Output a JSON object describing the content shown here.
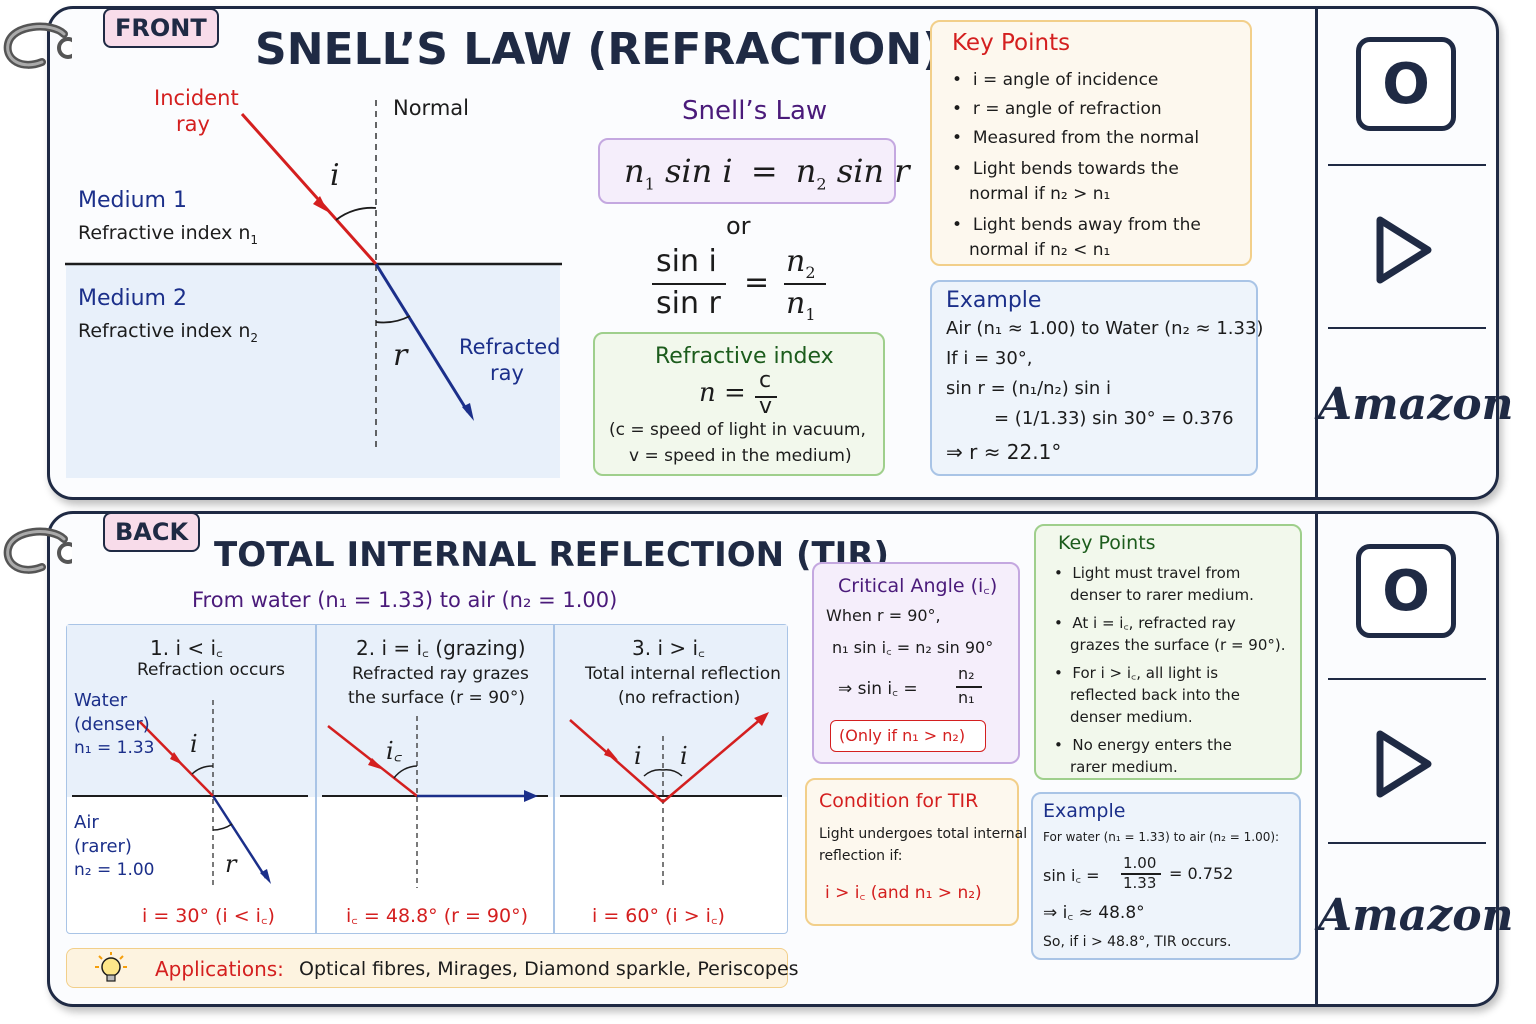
{
  "front": {
    "tag": "FRONT",
    "title": "SNELL’S LAW (REFRACTION)",
    "diagram": {
      "incident": "Incident",
      "incident2": "ray",
      "normal": "Normal",
      "i": "i",
      "r": "r",
      "medium1": "Medium 1",
      "ri1": "Refractive index n",
      "sub1": "1",
      "medium2": "Medium 2",
      "ri2": "Refractive index n",
      "sub2": "2",
      "refracted": "Refracted",
      "refracted2": "ray"
    },
    "snell": {
      "heading": "Snell’s Law",
      "eq_left": "n",
      "eq_left_sub": "1",
      "eq_left_fn": "sin i",
      "eq_mid": "=",
      "eq_right": "n",
      "eq_right_sub": "2",
      "eq_right_fn": "sin r",
      "or": "or",
      "frac_num1": "sin i",
      "frac_den1": "sin r",
      "frac_eq": "=",
      "frac_num2": "n",
      "frac_num2_sub": "2",
      "frac_den2": "n",
      "frac_den2_sub": "1"
    },
    "refractive_index": {
      "heading": "Refractive index",
      "eq": "n =",
      "num": "c",
      "den": "v",
      "note1": "(c = speed of light in vacuum,",
      "note2": "v = speed in the medium)"
    },
    "key_points": {
      "heading": "Key Points",
      "items": [
        "i = angle of incidence",
        "r = angle of refraction",
        "Measured from the normal",
        "Light bends towards the",
        "normal if n₂ > n₁",
        "Light bends away from the",
        "normal if n₂ < n₁"
      ]
    },
    "example": {
      "heading": "Example",
      "line1": "Air (n₁ ≈ 1.00) to Water (n₂ ≈ 1.33)",
      "line2": "If i = 30°,",
      "line3": "sin r = (n₁/n₂) sin i",
      "line4": "= (1/1.33) sin 30° = 0.376",
      "line5": "⇒ r ≈ 22.1°"
    }
  },
  "back": {
    "tag": "BACK",
    "title": "TOTAL INTERNAL REFLECTION (TIR)",
    "subtitle": "From water (n₁ = 1.33) to air (n₂ = 1.00)",
    "panels": [
      {
        "heading": "1. i < i꜀",
        "sub1": "Refraction occurs",
        "sub2": "",
        "caption": "i = 30°   (i < i꜀)"
      },
      {
        "heading": "2. i = i꜀ (grazing)",
        "sub1": "Refracted ray grazes",
        "sub2": "the surface (r = 90°)",
        "caption": "i꜀ = 48.8°   (r = 90°)"
      },
      {
        "heading": "3. i > i꜀",
        "sub1": "Total internal reflection",
        "sub2": "(no refraction)",
        "caption": "i = 60°   (i > i꜀)"
      }
    ],
    "labels": {
      "water1": "Water",
      "water2": "(denser)",
      "water3": "n₁ = 1.33",
      "air1": "Air",
      "air2": "(rarer)",
      "air3": "n₂ = 1.00",
      "i": "i",
      "r": "r",
      "ic": "i꜀"
    },
    "applications": {
      "label": "Applications:",
      "text": "Optical fibres, Mirages, Diamond sparkle, Periscopes"
    },
    "critical": {
      "heading": "Critical Angle (i꜀)",
      "line1": "When r = 90°,",
      "line2": "n₁ sin i꜀ = n₂ sin 90°",
      "line3a": "⇒  sin i꜀ =",
      "num": "n₂",
      "den": "n₁",
      "only": "(Only if n₁ > n₂)"
    },
    "condition": {
      "heading": "Condition for TIR",
      "line1": "Light undergoes total internal",
      "line2": "reflection if:",
      "line3": "i > i꜀   (and n₁ > n₂)"
    },
    "key_points": {
      "heading": "Key Points",
      "items": [
        "Light must travel from",
        "denser to rarer medium.",
        "At i = i꜀, refracted ray",
        "grazes the surface (r = 90°).",
        "For i > i꜀, all light is",
        "reflected back into the",
        "denser medium.",
        "No energy enters the",
        "rarer medium."
      ]
    },
    "example": {
      "heading": "Example",
      "line1": "For water (n₁ = 1.33) to air (n₂ = 1.00):",
      "line2a": "sin i꜀ =",
      "num": "1.00",
      "den": "1.33",
      "line2b": "= 0.752",
      "line3": "⇒  i꜀  ≈  48.8°",
      "line4": "So, if i > 48.8°, TIR occurs."
    }
  },
  "sidebar": {
    "button_label": "O",
    "brand": "Amazon"
  },
  "colors": {
    "navy": "#1f2a44",
    "red": "#d41f1f",
    "blue": "#1b2f8a",
    "light_blue": "#e8f0fa",
    "key_border": "#f2cf8a",
    "example_border": "#a9c4e6",
    "green_border": "#9fcf8c",
    "purple_border": "#c4a8e0"
  }
}
